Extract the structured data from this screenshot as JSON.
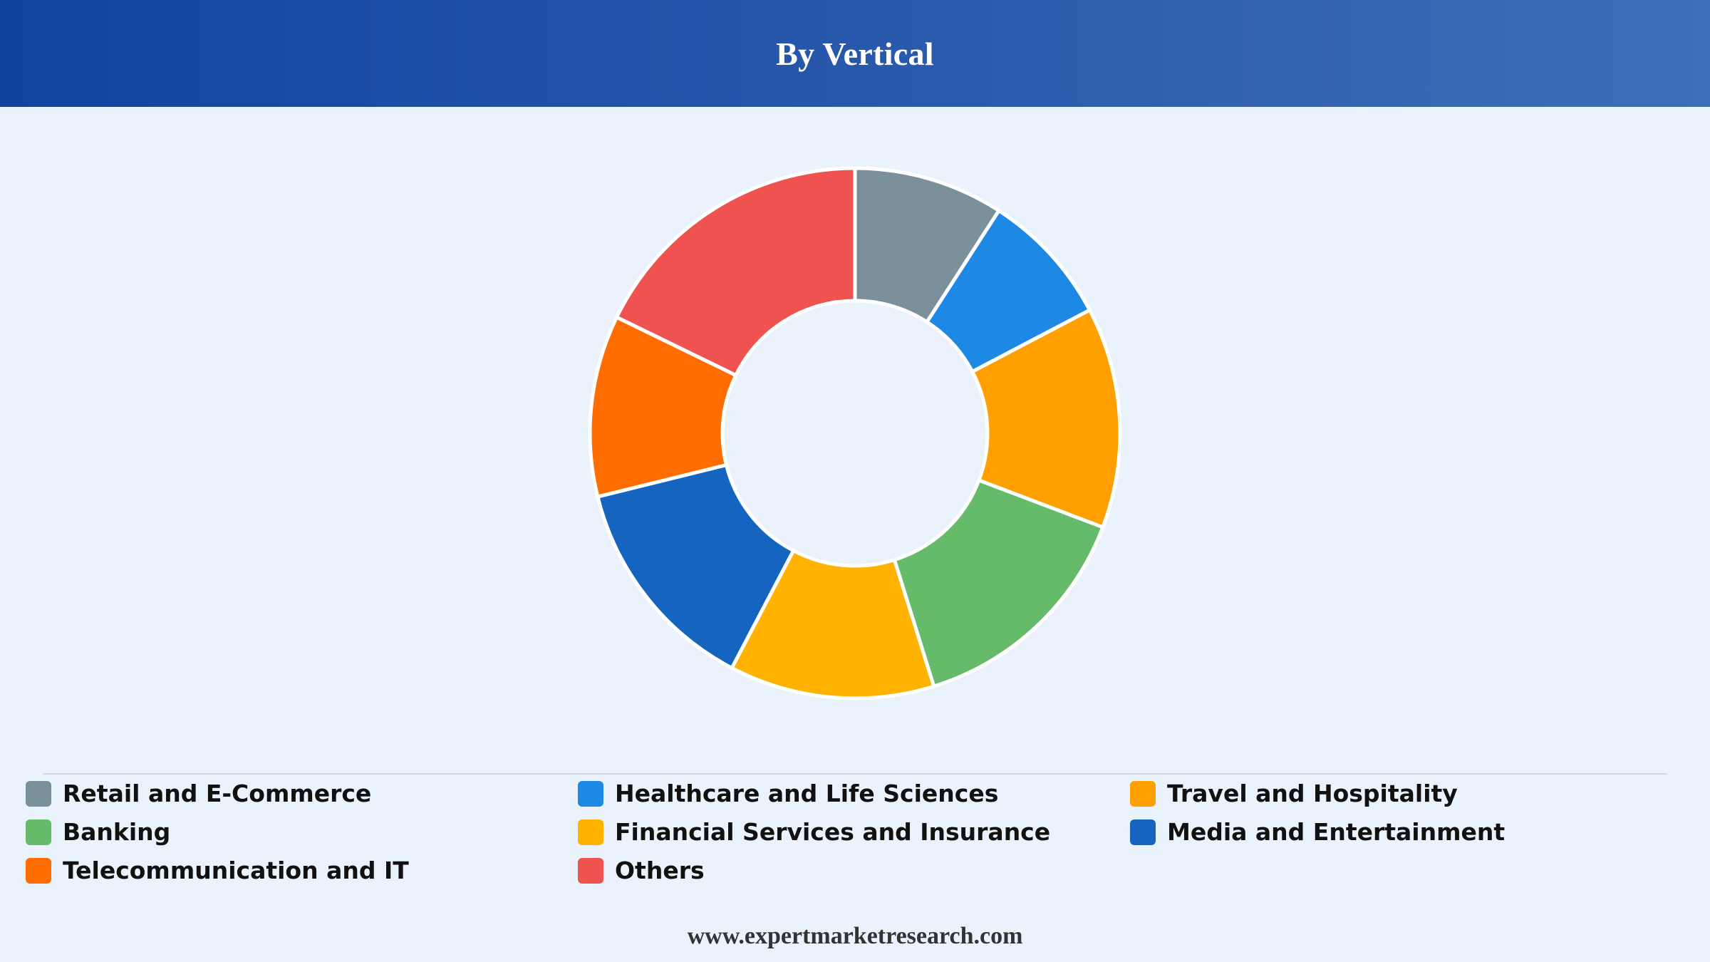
{
  "header": {
    "title": "By Vertical"
  },
  "chart_data": {
    "type": "pie",
    "donut": true,
    "title": "By Vertical",
    "legend_position": "bottom",
    "categories": [
      "Retail and E-Commerce",
      "Healthcare and Life Sciences",
      "Travel and Hospitality",
      "Banking",
      "Financial Services and Insurance",
      "Media and Entertainment",
      "Telecommunication and IT",
      "Others"
    ],
    "values": [
      9.5,
      8.5,
      14,
      15,
      13,
      14,
      11.5,
      18.5
    ],
    "colors": [
      "#7a919c",
      "#1e88e5",
      "#ffa000",
      "#66bb6a",
      "#ffb300",
      "#1565c0",
      "#ff6d00",
      "#ef5350"
    ]
  },
  "footer": {
    "website": "www.expertmarketresearch.com"
  }
}
